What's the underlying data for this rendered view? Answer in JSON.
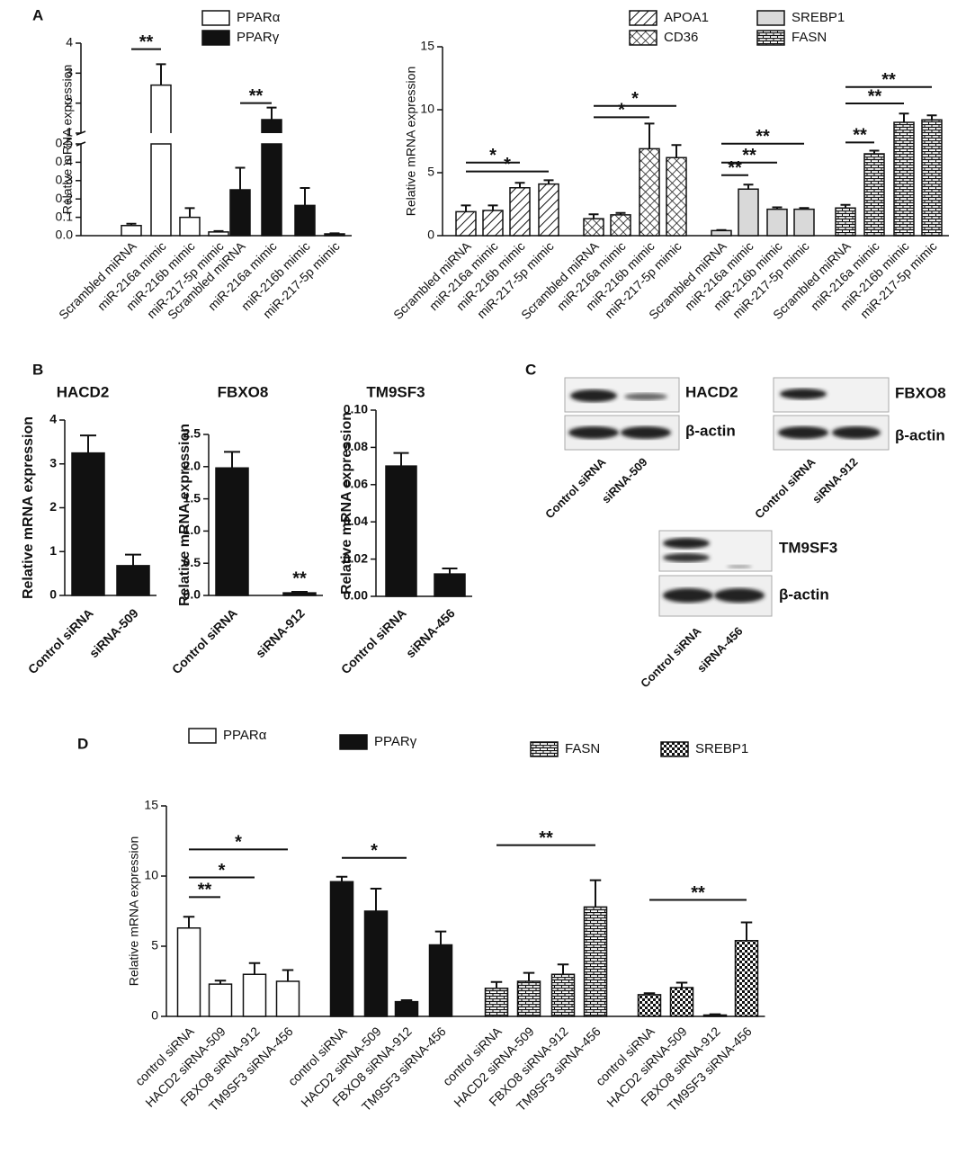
{
  "panels": [
    "A",
    "B",
    "C",
    "D"
  ],
  "blots": [
    {
      "target": "HACD2",
      "reference": "β-actin",
      "lanes": [
        "Control siRNA",
        "siRNA-509"
      ]
    },
    {
      "target": "FBXO8",
      "reference": "β-actin",
      "lanes": [
        "Control siRNA",
        "siRNA-912"
      ]
    },
    {
      "target": "TM9SF3",
      "reference": "β-actin",
      "lanes": [
        "Control siRNA",
        "siRNA-456"
      ]
    }
  ],
  "chart_data": [
    {
      "type": "bar",
      "y_label": "Relative mRNA expression",
      "ylim": [
        0,
        0.5
      ],
      "yticks": [
        {
          "value": 0,
          "label": "0.0"
        },
        0.1,
        0.2,
        0.3,
        0.4,
        0.5
      ],
      "y_break": {
        "ylim": [
          1,
          4
        ],
        "yticks": [
          1,
          2,
          3,
          4
        ]
      },
      "series": [
        {
          "name": "PPARα",
          "color": "#ffffff",
          "pattern": "solid",
          "categories": [
            "Scrambled miRNA",
            "miR-216a mimic",
            "miR-216b mimic",
            "miR-217-5p mimic"
          ],
          "values": [
            0.055,
            2.6,
            0.1,
            0.02
          ],
          "errors": [
            0.01,
            0.7,
            0.05,
            0.005
          ]
        },
        {
          "name": "PPARγ",
          "color": "#111111",
          "pattern": "solid",
          "categories": [
            "Scrambled miRNA",
            "miR-216a mimic",
            "miR-216b mimic",
            "miR-217-5p mimic"
          ],
          "values": [
            0.25,
            1.45,
            0.165,
            0.01
          ],
          "errors": [
            0.12,
            0.4,
            0.095,
            0.003
          ]
        }
      ],
      "annotations": [
        {
          "text": "**",
          "series": 0,
          "from": 0,
          "to": 1,
          "y": 3.8
        },
        {
          "text": "**",
          "series": 1,
          "from": 0,
          "to": 1,
          "y": 2.0
        }
      ]
    },
    {
      "type": "bar",
      "y_label": "Relative mRNA expression",
      "ylim": [
        0,
        15
      ],
      "yticks": [
        0,
        5,
        10,
        15
      ],
      "series": [
        {
          "name": "APOA1",
          "color": "#ffffff",
          "pattern": "diagonal",
          "categories": [
            "Scrambled miRNA",
            "miR-216a mimic",
            "miR-216b mimic",
            "miR-217-5p mimic"
          ],
          "values": [
            1.9,
            2.0,
            3.8,
            4.1
          ],
          "errors": [
            0.5,
            0.4,
            0.4,
            0.3
          ]
        },
        {
          "name": "CD36",
          "color": "#ffffff",
          "pattern": "crosshatch",
          "categories": [
            "Scrambled miRNA",
            "miR-216a mimic",
            "miR-216b mimic",
            "miR-217-5p mimic"
          ],
          "values": [
            1.35,
            1.65,
            6.9,
            6.2
          ],
          "errors": [
            0.35,
            0.15,
            2.0,
            1.0
          ]
        },
        {
          "name": "SREBP1",
          "color": "#d9d9d9",
          "pattern": "solid",
          "categories": [
            "Scrambled miRNA",
            "miR-216a mimic",
            "miR-216b mimic",
            "miR-217-5p mimic"
          ],
          "values": [
            0.4,
            3.7,
            2.1,
            2.1
          ],
          "errors": [
            0.05,
            0.35,
            0.15,
            0.1
          ]
        },
        {
          "name": "FASN",
          "color": "#ffffff",
          "pattern": "brick",
          "categories": [
            "Scrambled miRNA",
            "miR-216a mimic",
            "miR-216b mimic",
            "miR-217-5p mimic"
          ],
          "values": [
            2.2,
            6.5,
            9.0,
            9.2
          ],
          "errors": [
            0.25,
            0.25,
            0.7,
            0.35
          ]
        }
      ],
      "annotations": [
        {
          "text": "*",
          "series": 0,
          "from": 0,
          "to": 2,
          "y": 5.8
        },
        {
          "text": "*",
          "series": 0,
          "from": 0,
          "to": 3,
          "y": 5.1
        },
        {
          "text": "*",
          "series": 1,
          "from": 0,
          "to": 3,
          "y": 10.3
        },
        {
          "text": "*",
          "series": 1,
          "from": 0,
          "to": 2,
          "y": 9.4
        },
        {
          "text": "**",
          "series": 2,
          "from": 0,
          "to": 3,
          "y": 7.3
        },
        {
          "text": "**",
          "series": 2,
          "from": 0,
          "to": 2,
          "y": 5.8
        },
        {
          "text": "**",
          "series": 2,
          "from": 0,
          "to": 1,
          "y": 4.8
        },
        {
          "text": "**",
          "series": 3,
          "from": 0,
          "to": 3,
          "y": 11.8
        },
        {
          "text": "**",
          "series": 3,
          "from": 0,
          "to": 2,
          "y": 10.5
        },
        {
          "text": "**",
          "series": 3,
          "from": 0,
          "to": 1,
          "y": 7.4
        }
      ]
    },
    {
      "type": "bar",
      "title": "HACD2",
      "y_label": "Relative mRNA expression",
      "ylim": [
        0,
        4
      ],
      "yticks": [
        0,
        1,
        2,
        3,
        4
      ],
      "series": [
        {
          "color": "#111111",
          "pattern": "solid",
          "categories": [
            "Control siRNA",
            "siRNA-509"
          ],
          "values": [
            3.25,
            0.68
          ],
          "errors": [
            0.4,
            0.25
          ]
        }
      ],
      "annotations": []
    },
    {
      "type": "bar",
      "title": "FBXO8",
      "y_label": "Relative mRNA expression",
      "ylim": [
        0,
        2.5
      ],
      "yticks": [
        {
          "value": 0,
          "label": "0.0"
        },
        0.5,
        {
          "value": 1,
          "label": "1.0"
        },
        1.5,
        {
          "value": 2,
          "label": "2.0"
        },
        2.5
      ],
      "series": [
        {
          "color": "#111111",
          "pattern": "solid",
          "categories": [
            "Control siRNA",
            "siRNA-912"
          ],
          "values": [
            1.98,
            0.04
          ],
          "errors": [
            0.25,
            0.015
          ]
        }
      ],
      "annotations": [
        {
          "text": "**",
          "series": 0,
          "from": 1,
          "y": 0.15
        }
      ]
    },
    {
      "type": "bar",
      "title": "TM9SF3",
      "y_label": "Relative mRNA expression",
      "ylim": [
        0,
        0.1
      ],
      "yticks": [
        {
          "value": 0,
          "label": "0.00"
        },
        0.02,
        0.04,
        0.06,
        0.08,
        {
          "value": 0.1,
          "label": "0.10"
        }
      ],
      "series": [
        {
          "color": "#111111",
          "pattern": "solid",
          "categories": [
            "Control siRNA",
            "siRNA-456"
          ],
          "values": [
            0.07,
            0.012
          ],
          "errors": [
            0.007,
            0.003
          ]
        }
      ],
      "annotations": []
    },
    {
      "type": "bar",
      "y_label": "Relative mRNA expression",
      "ylim": [
        0,
        15
      ],
      "yticks": [
        0,
        5,
        10,
        15
      ],
      "series": [
        {
          "name": "PPARα",
          "color": "#ffffff",
          "pattern": "solid",
          "categories": [
            "control siRNA",
            "HACD2 siRNA-509",
            "FBXO8 siRNA-912",
            "TM9SF3 siRNA-456"
          ],
          "values": [
            6.3,
            2.3,
            3.0,
            2.5
          ],
          "errors": [
            0.8,
            0.25,
            0.8,
            0.8
          ]
        },
        {
          "name": "PPARγ",
          "color": "#111111",
          "pattern": "solid",
          "categories": [
            "control siRNA",
            "HACD2 siRNA-509",
            "FBXO8 siRNA-912",
            "TM9SF3 siRNA-456"
          ],
          "values": [
            9.6,
            7.5,
            1.05,
            5.1
          ],
          "errors": [
            0.35,
            1.6,
            0.1,
            0.95
          ]
        },
        {
          "name": "FASN",
          "color": "#ffffff",
          "pattern": "brick",
          "categories": [
            "control siRNA",
            "HACD2 siRNA-509",
            "FBXO8 siRNA-912",
            "TM9SF3 siRNA-456"
          ],
          "values": [
            2.0,
            2.5,
            3.0,
            7.8
          ],
          "errors": [
            0.45,
            0.6,
            0.7,
            1.9
          ]
        },
        {
          "name": "SREBP1",
          "color": "#ffffff",
          "pattern": "checker",
          "categories": [
            "control siRNA",
            "HACD2 siRNA-509",
            "FBXO8 siRNA-912",
            "TM9SF3 siRNA-456"
          ],
          "values": [
            1.55,
            2.05,
            0.1,
            5.4
          ],
          "errors": [
            0.1,
            0.35,
            0.05,
            1.3
          ]
        }
      ],
      "annotations": [
        {
          "text": "*",
          "series": 0,
          "from": 0,
          "to": 3,
          "y": 11.9
        },
        {
          "text": "*",
          "series": 0,
          "from": 0,
          "to": 2,
          "y": 9.9
        },
        {
          "text": "**",
          "series": 0,
          "from": 0,
          "to": 1,
          "y": 8.5
        },
        {
          "text": "*",
          "series": 1,
          "from": 0,
          "to": 2,
          "y": 11.3
        },
        {
          "text": "**",
          "series": 2,
          "from": 0,
          "to": 3,
          "y": 12.2
        },
        {
          "text": "**",
          "series": 3,
          "from": 0,
          "to": 3,
          "y": 8.3
        }
      ]
    }
  ]
}
